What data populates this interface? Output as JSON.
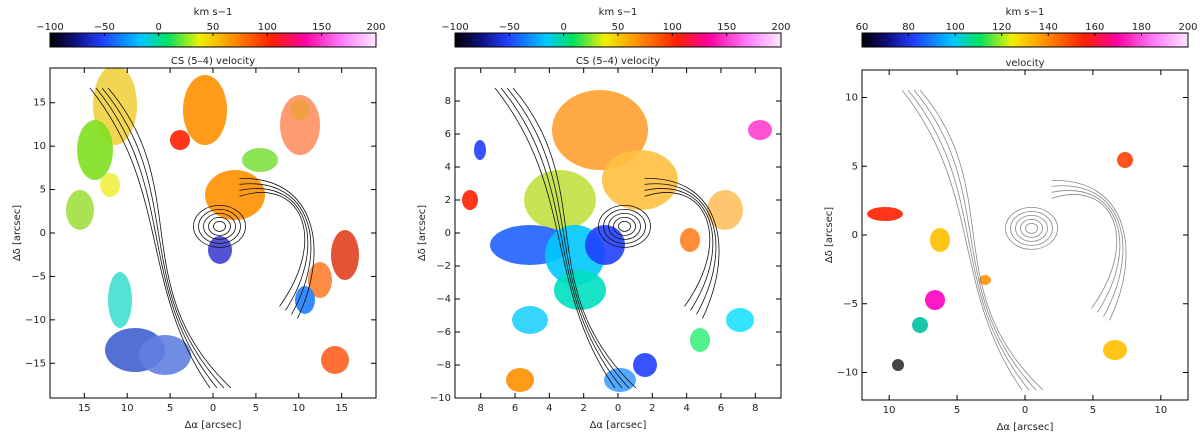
{
  "chart_data": [
    {
      "type": "heatmap",
      "title": "CS (5–4) velocity",
      "colorbar": {
        "label": "km s−1",
        "range": [
          -100,
          200
        ],
        "ticks": [
          "−100",
          "−50",
          "0",
          "50",
          "100",
          "150",
          "200"
        ]
      },
      "xlabel": "Δα [arcsec]",
      "ylabel": "Δδ [arcsec]",
      "xlim": [
        19,
        -19
      ],
      "ylim": [
        -19,
        19
      ],
      "x_ticks": [
        "15",
        "10",
        "5",
        "0",
        "5",
        "10",
        "15"
      ],
      "y_ticks": [
        "15",
        "10",
        "5",
        "0",
        "−5",
        "−10",
        "−15"
      ]
    },
    {
      "type": "heatmap",
      "title": "CS (5–4) velocity",
      "colorbar": {
        "label": "km s−1",
        "range": [
          -100,
          200
        ],
        "ticks": [
          "−100",
          "−50",
          "0",
          "50",
          "100",
          "150",
          "200"
        ]
      },
      "xlabel": "Δα [arcsec]",
      "ylabel": "Δδ [arcsec]",
      "xlim": [
        9.5,
        -9.5
      ],
      "ylim": [
        -10,
        10
      ],
      "x_ticks": [
        "8",
        "6",
        "4",
        "2",
        "0",
        "2",
        "4",
        "6",
        "8"
      ],
      "y_ticks": [
        "8",
        "6",
        "4",
        "2",
        "0",
        "−2",
        "−4",
        "−6",
        "−8",
        "−10"
      ]
    },
    {
      "type": "heatmap",
      "title": "velocity",
      "colorbar": {
        "label": "km s−1",
        "range": [
          60,
          200
        ],
        "ticks": [
          "60",
          "80",
          "100",
          "120",
          "140",
          "160",
          "180",
          "200"
        ]
      },
      "xlabel": "Δα [arcsec]",
      "ylabel": "Δδ [arcsec]",
      "xlim": [
        12,
        -12
      ],
      "ylim": [
        -12,
        12
      ],
      "x_ticks": [
        "10",
        "5",
        "0",
        "5",
        "10"
      ],
      "y_ticks": [
        "10",
        "5",
        "0",
        "−5",
        "−10"
      ]
    }
  ]
}
